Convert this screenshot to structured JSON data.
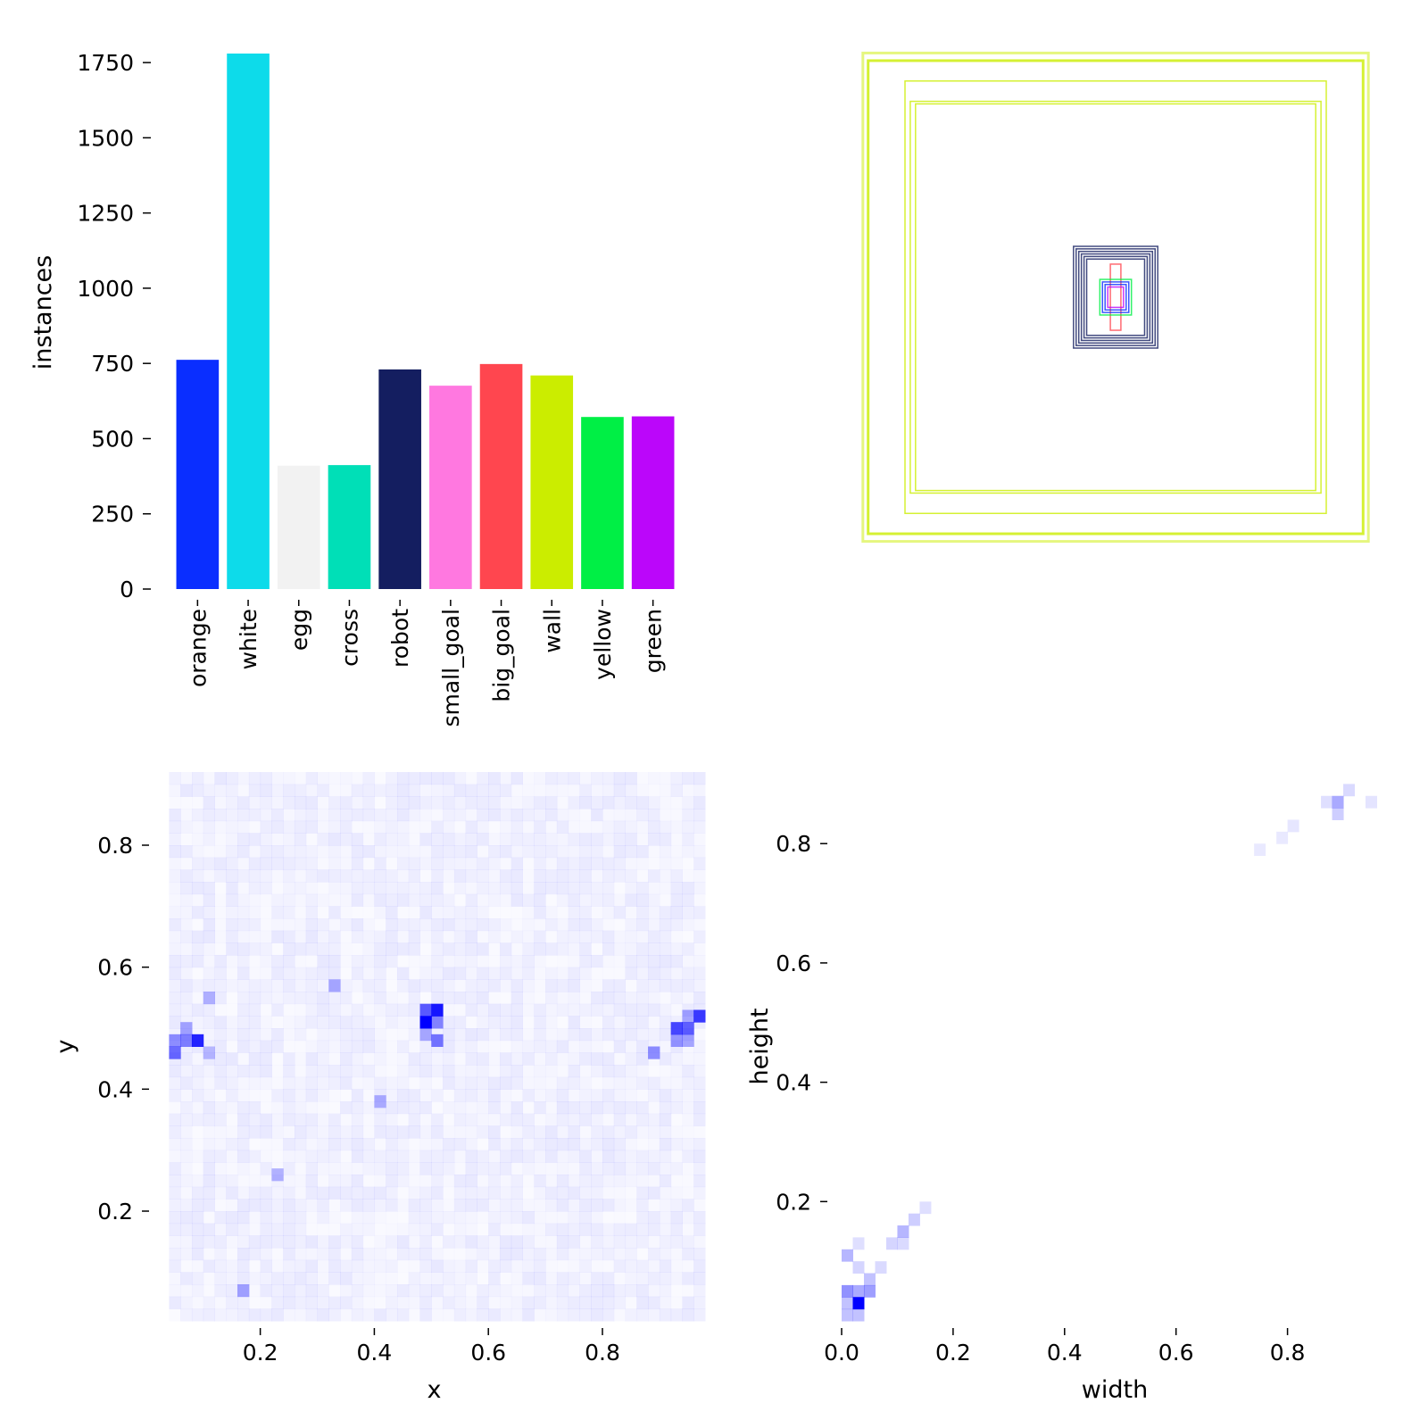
{
  "chart_data": [
    {
      "type": "bar",
      "panel": "top-left",
      "ylabel": "instances",
      "xlabel": "",
      "ylim": [
        0,
        1780
      ],
      "yticks": [
        0,
        250,
        500,
        750,
        1000,
        1250,
        1500,
        1750
      ],
      "categories": [
        "orange",
        "white",
        "egg",
        "cross",
        "robot",
        "small_goal",
        "big_goal",
        "wall",
        "yellow",
        "green"
      ],
      "values": [
        762,
        1780,
        410,
        412,
        730,
        676,
        748,
        710,
        572,
        574
      ],
      "colors": [
        "#0a2eff",
        "#0ddbea",
        "#f2f2f2",
        "#00dfb7",
        "#141e60",
        "#ff78e0",
        "#ff464f",
        "#cbed00",
        "#00ef45",
        "#bb06fa"
      ]
    },
    {
      "type": "boxes",
      "panel": "top-right",
      "description_source": "overlay of label boxes centered at image middle",
      "xlim": [
        0,
        1
      ],
      "ylim": [
        0,
        1
      ],
      "boxes": [
        {
          "w": 0.96,
          "h": 0.96,
          "color": "#cbed00"
        },
        {
          "w": 0.94,
          "h": 0.93,
          "color": "#cbed00"
        },
        {
          "w": 0.8,
          "h": 0.85,
          "color": "#cbed00"
        },
        {
          "w": 0.78,
          "h": 0.77,
          "color": "#cbed00"
        },
        {
          "w": 0.76,
          "h": 0.76,
          "color": "#cbed00"
        },
        {
          "w": 0.16,
          "h": 0.2,
          "color": "#141e60"
        },
        {
          "w": 0.15,
          "h": 0.19,
          "color": "#141e60"
        },
        {
          "w": 0.14,
          "h": 0.18,
          "color": "#141e60"
        },
        {
          "w": 0.13,
          "h": 0.17,
          "color": "#141e60"
        },
        {
          "w": 0.12,
          "h": 0.16,
          "color": "#141e60"
        },
        {
          "w": 0.11,
          "h": 0.15,
          "color": "#141e60"
        },
        {
          "w": 0.02,
          "h": 0.13,
          "color": "#ff464f"
        },
        {
          "w": 0.06,
          "h": 0.07,
          "color": "#00ef45"
        },
        {
          "w": 0.05,
          "h": 0.06,
          "color": "#0a2eff"
        },
        {
          "w": 0.04,
          "h": 0.05,
          "color": "#0a2eff"
        },
        {
          "w": 0.03,
          "h": 0.04,
          "color": "#bb06fa"
        }
      ]
    },
    {
      "type": "heatmap",
      "panel": "bottom-left",
      "xlabel": "x",
      "ylabel": "y",
      "xlim": [
        0.03,
        0.98
      ],
      "ylim": [
        0.02,
        0.92
      ],
      "xticks": [
        0.2,
        0.4,
        0.6,
        0.8
      ],
      "yticks": [
        0.2,
        0.4,
        0.6,
        0.8
      ],
      "bins": 50,
      "color": "#0000ff",
      "hotspots": [
        {
          "x": 0.49,
          "y": 0.51,
          "v": 1.0
        },
        {
          "x": 0.51,
          "y": 0.53,
          "v": 0.9
        },
        {
          "x": 0.49,
          "y": 0.53,
          "v": 0.6
        },
        {
          "x": 0.51,
          "y": 0.51,
          "v": 0.45
        },
        {
          "x": 0.51,
          "y": 0.48,
          "v": 0.5
        },
        {
          "x": 0.49,
          "y": 0.49,
          "v": 0.3
        },
        {
          "x": 0.09,
          "y": 0.48,
          "v": 0.85
        },
        {
          "x": 0.07,
          "y": 0.48,
          "v": 0.45
        },
        {
          "x": 0.05,
          "y": 0.46,
          "v": 0.55
        },
        {
          "x": 0.05,
          "y": 0.48,
          "v": 0.4
        },
        {
          "x": 0.07,
          "y": 0.5,
          "v": 0.3
        },
        {
          "x": 0.11,
          "y": 0.46,
          "v": 0.2
        },
        {
          "x": 0.93,
          "y": 0.5,
          "v": 0.7
        },
        {
          "x": 0.95,
          "y": 0.5,
          "v": 0.6
        },
        {
          "x": 0.97,
          "y": 0.52,
          "v": 0.75
        },
        {
          "x": 0.93,
          "y": 0.48,
          "v": 0.35
        },
        {
          "x": 0.95,
          "y": 0.48,
          "v": 0.3
        },
        {
          "x": 0.95,
          "y": 0.52,
          "v": 0.3
        },
        {
          "x": 0.89,
          "y": 0.46,
          "v": 0.4
        },
        {
          "x": 0.17,
          "y": 0.07,
          "v": 0.3
        },
        {
          "x": 0.33,
          "y": 0.57,
          "v": 0.3
        },
        {
          "x": 0.11,
          "y": 0.55,
          "v": 0.25
        },
        {
          "x": 0.41,
          "y": 0.38,
          "v": 0.25
        },
        {
          "x": 0.23,
          "y": 0.26,
          "v": 0.25
        }
      ]
    },
    {
      "type": "heatmap",
      "panel": "bottom-right",
      "xlabel": "width",
      "ylabel": "height",
      "xlim": [
        0.0,
        0.98
      ],
      "ylim": [
        0.0,
        0.92
      ],
      "xticks": [
        0.0,
        0.2,
        0.4,
        0.6,
        0.8
      ],
      "yticks": [
        0.2,
        0.4,
        0.6,
        0.8
      ],
      "bins": 50,
      "color": "#0000ff",
      "cells": [
        {
          "x": 0.03,
          "y": 0.03,
          "v": 1.0
        },
        {
          "x": 0.01,
          "y": 0.05,
          "v": 0.4
        },
        {
          "x": 0.05,
          "y": 0.05,
          "v": 0.35
        },
        {
          "x": 0.03,
          "y": 0.05,
          "v": 0.3
        },
        {
          "x": 0.01,
          "y": 0.03,
          "v": 0.2
        },
        {
          "x": 0.03,
          "y": 0.01,
          "v": 0.2
        },
        {
          "x": 0.01,
          "y": 0.01,
          "v": 0.2
        },
        {
          "x": 0.05,
          "y": 0.07,
          "v": 0.2
        },
        {
          "x": 0.01,
          "y": 0.11,
          "v": 0.25
        },
        {
          "x": 0.03,
          "y": 0.09,
          "v": 0.12
        },
        {
          "x": 0.07,
          "y": 0.09,
          "v": 0.1
        },
        {
          "x": 0.09,
          "y": 0.13,
          "v": 0.12
        },
        {
          "x": 0.11,
          "y": 0.15,
          "v": 0.25
        },
        {
          "x": 0.13,
          "y": 0.17,
          "v": 0.15
        },
        {
          "x": 0.15,
          "y": 0.19,
          "v": 0.08
        },
        {
          "x": 0.11,
          "y": 0.13,
          "v": 0.1
        },
        {
          "x": 0.03,
          "y": 0.13,
          "v": 0.08
        },
        {
          "x": 0.89,
          "y": 0.87,
          "v": 0.3
        },
        {
          "x": 0.89,
          "y": 0.85,
          "v": 0.15
        },
        {
          "x": 0.91,
          "y": 0.89,
          "v": 0.1
        },
        {
          "x": 0.87,
          "y": 0.87,
          "v": 0.08
        },
        {
          "x": 0.95,
          "y": 0.87,
          "v": 0.06
        },
        {
          "x": 0.81,
          "y": 0.83,
          "v": 0.05
        },
        {
          "x": 0.79,
          "y": 0.81,
          "v": 0.04
        },
        {
          "x": 0.75,
          "y": 0.79,
          "v": 0.04
        }
      ]
    }
  ]
}
